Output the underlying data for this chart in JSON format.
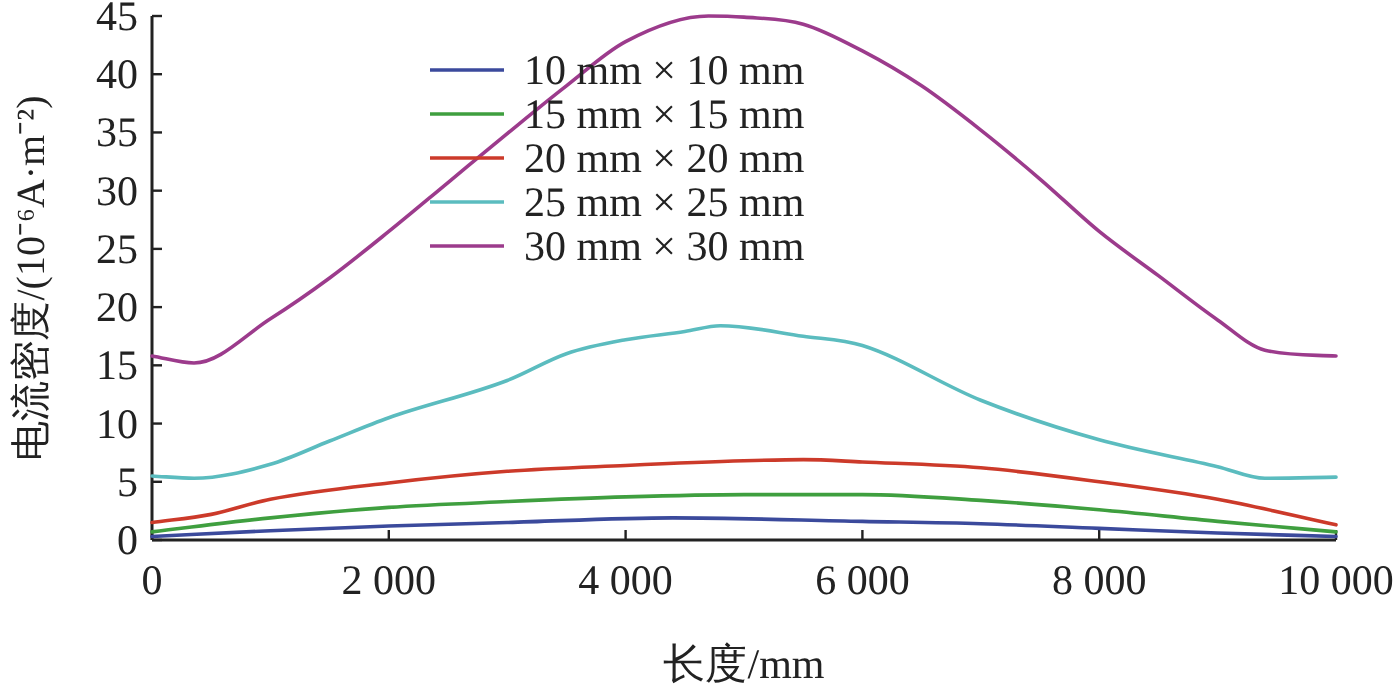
{
  "chart_data": {
    "type": "line",
    "xlabel": "长度/mm",
    "ylabel": "电流密度/(10⁻⁶A·m⁻²)",
    "xlim": [
      0,
      10000
    ],
    "ylim": [
      0,
      45
    ],
    "xticks": [
      0,
      {
        "value": 2000,
        "label": "2 000"
      },
      {
        "value": 4000,
        "label": "4 000"
      },
      {
        "value": 6000,
        "label": "6 000"
      },
      {
        "value": 8000,
        "label": "8 000"
      },
      {
        "value": 10000,
        "label": "10 000"
      }
    ],
    "yticks": [
      0,
      5,
      10,
      15,
      20,
      25,
      30,
      35,
      40,
      45
    ],
    "grid": false,
    "legend": "top",
    "marker": "none",
    "line_style": "solid",
    "series": [
      {
        "name": "10 mm × 10 mm",
        "color": "#3b4a9c",
        "x": [
          0,
          1000,
          2000,
          3000,
          4400,
          6000,
          7000,
          8000,
          9000,
          10000
        ],
        "values": [
          0.3,
          0.8,
          1.2,
          1.5,
          1.9,
          1.6,
          1.4,
          1.0,
          0.6,
          0.3
        ]
      },
      {
        "name": "15 mm × 15 mm",
        "color": "#3f9f3f",
        "x": [
          0,
          1000,
          2000,
          3000,
          4000,
          5000,
          6000,
          7000,
          8000,
          9000,
          10000
        ],
        "values": [
          0.7,
          1.9,
          2.8,
          3.3,
          3.7,
          3.9,
          3.9,
          3.4,
          2.6,
          1.6,
          0.7
        ]
      },
      {
        "name": "20 mm × 20 mm",
        "color": "#cc3a2a",
        "x": [
          0,
          500,
          1000,
          2000,
          3000,
          4000,
          5000,
          5500,
          6000,
          7000,
          8000,
          9000,
          10000
        ],
        "values": [
          1.5,
          2.2,
          3.5,
          4.9,
          5.9,
          6.4,
          6.8,
          6.9,
          6.7,
          6.2,
          5.0,
          3.5,
          1.3
        ]
      },
      {
        "name": "25 mm × 25 mm",
        "color": "#5bbcbf",
        "x": [
          0,
          355,
          1000,
          1500,
          2000,
          3000,
          3500,
          4000,
          4500,
          4800,
          5500,
          6000,
          7000,
          8000,
          9000,
          9400,
          10000
        ],
        "values": [
          5.5,
          5.3,
          6.5,
          8.5,
          10.5,
          13.7,
          16,
          17.2,
          17.9,
          18.4,
          17.5,
          16.7,
          12,
          8.6,
          6.3,
          5.3,
          5.4
        ]
      },
      {
        "name": "30 mm × 30 mm",
        "color": "#9c3b8c",
        "x": [
          0,
          355,
          1000,
          1500,
          2000,
          2500,
          3000,
          3500,
          4000,
          4700,
          5000,
          5500,
          6000,
          6500,
          7000,
          7500,
          8000,
          8500,
          9000,
          9400,
          10000
        ],
        "values": [
          15.8,
          15.2,
          19,
          22.5,
          26.5,
          30.7,
          34.9,
          39,
          42.8,
          45,
          44.9,
          44.3,
          42,
          39,
          35.2,
          31,
          26.5,
          22.7,
          18.9,
          16.3,
          15.8
        ]
      }
    ]
  }
}
